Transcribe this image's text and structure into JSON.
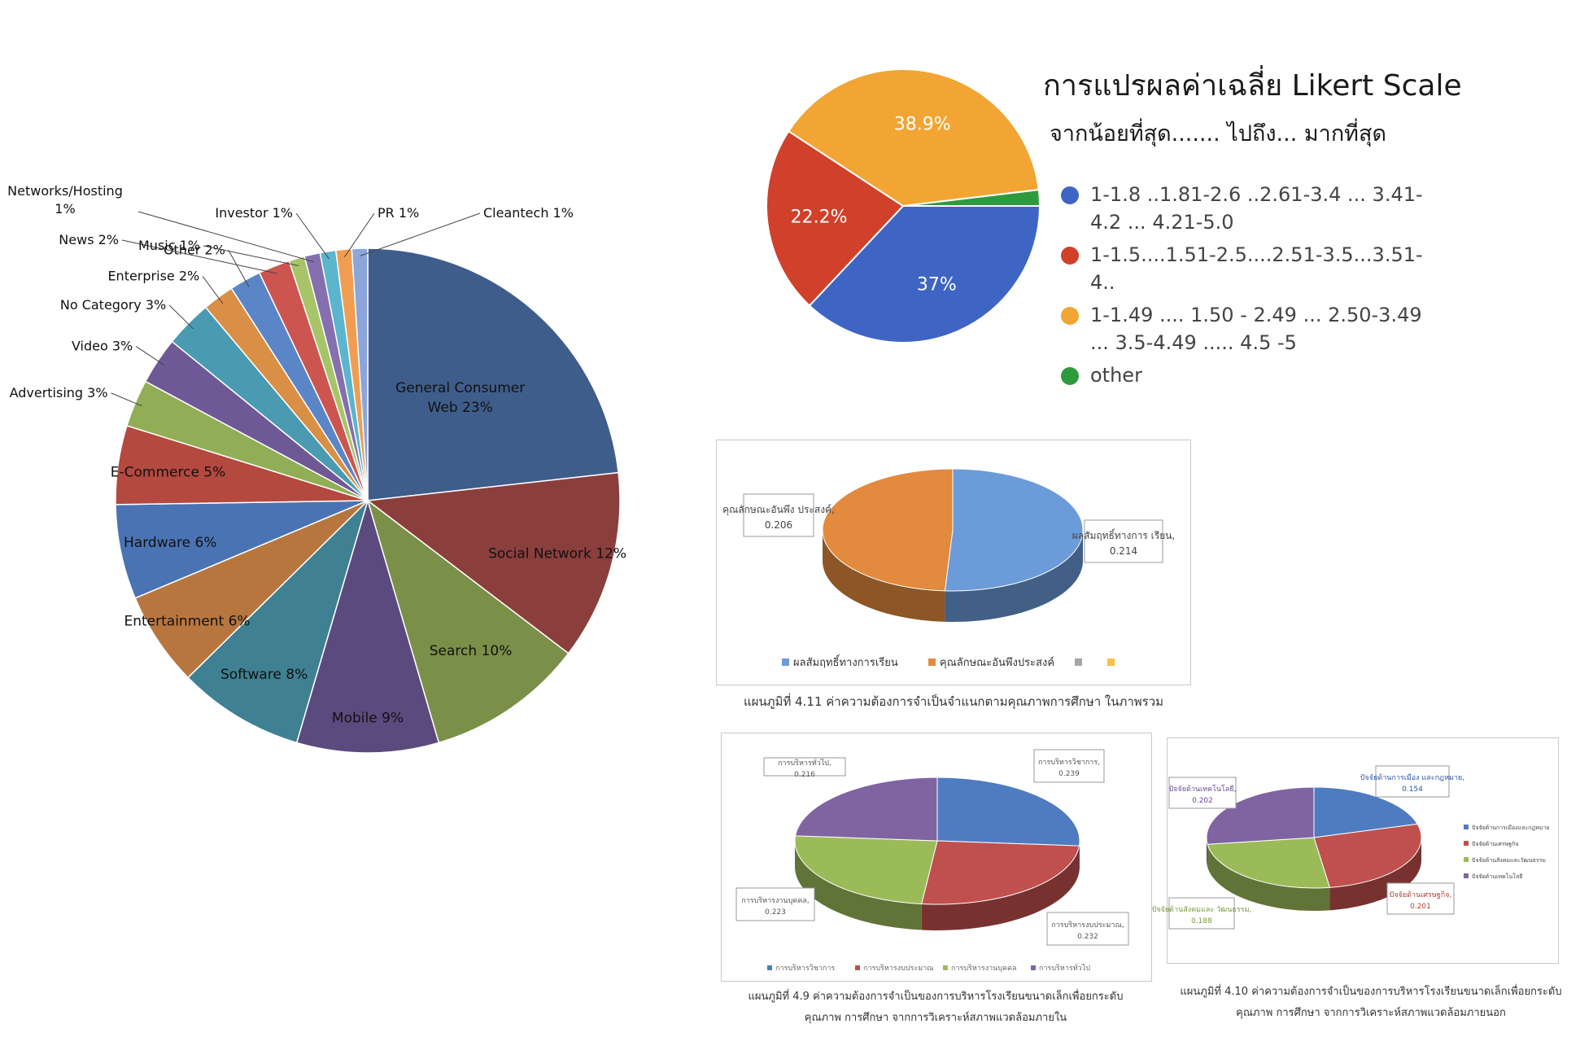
{
  "chart_data": [
    {
      "type": "pie",
      "categories": [
        "General Consumer Web",
        "Social Network",
        "Search",
        "Mobile",
        "Software",
        "Entertainment",
        "Hardware",
        "E-Commerce",
        "Advertising",
        "Video",
        "No Category",
        "Enterprise",
        "Other",
        "News",
        "Music",
        "Networks/Hosting",
        "Investor",
        "PR",
        "Cleantech"
      ],
      "values": [
        23,
        12,
        10,
        9,
        8,
        6,
        6,
        5,
        3,
        3,
        3,
        2,
        2,
        2,
        1,
        1,
        1,
        1,
        1
      ],
      "labels": [
        "General Consumer Web 23%",
        "Social Network 12%",
        "Search 10%",
        "Mobile 9%",
        "Software 8%",
        "Entertainment 6%",
        "Hardware 6%",
        "E-Commerce 5%",
        "Advertising 3%",
        "Video 3%",
        "No Category 3%",
        "Enterprise 2%",
        "Other 2%",
        "News 2%",
        "Music 1%",
        "Networks/Hosting 1%",
        "Investor 1%",
        "PR 1%",
        "Cleantech 1%"
      ],
      "colors": [
        "#3f5d8a",
        "#8b3f3c",
        "#7a9048",
        "#5b4a7e",
        "#3f8092",
        "#b8763f",
        "#4a73b4",
        "#b4493f",
        "#91ad55",
        "#6f5896",
        "#4a9bb2",
        "#d98f45",
        "#5a86c8",
        "#cc5550",
        "#a7c568",
        "#856fae",
        "#5ab5cd",
        "#f09d52",
        "#8ca6dc"
      ]
    },
    {
      "type": "pie",
      "title": "การแปรผลค่าเฉลี่ย Likert Scale",
      "subtitle": "จากน้อยที่สุด....... ไปถึง... มากที่สุด",
      "categories": [
        "1-1.8 ..1.81-2.6 ..2.61-3.4 ... 3.41-4.2 ... 4.21-5.0",
        "1-1.5....1.51-2.5....2.51-3.5...3.51-4..",
        "1-1.49 .... 1.50 - 2.49 ... 2.50-3.49 ... 3.5-4.49 ..... 4.5 -5",
        "other"
      ],
      "values": [
        37,
        22.2,
        38.9,
        1.9
      ],
      "labels": [
        "37%",
        "22.2%",
        "38.9%",
        ""
      ],
      "colors": [
        "#3e65c4",
        "#d1402a",
        "#f2a533",
        "#2e9a3e"
      ],
      "legend": "right"
    },
    {
      "type": "pie",
      "categories": [
        "ผลสัมฤทธิ์ทางการเรียน",
        "คุณลักษณะอันพึงประสงค์",
        "",
        ""
      ],
      "values": [
        0.214,
        0.206
      ],
      "labels": [
        "ผลสัมฤทธิ์ทางการ เรียน, 0.214",
        "คุณลักษณะอันพึง ประสงค์, 0.206"
      ],
      "colors": [
        "#6b9bd8",
        "#e28a3d",
        "#a5a5a5",
        "#f5c242"
      ],
      "legend": "bottom",
      "caption": "แผนภูมิที่ 4.11 ค่าความต้องการจำเป็นจำแนกตามคุณภาพการศึกษา ในภาพรวม"
    },
    {
      "type": "pie",
      "categories": [
        "การบริหารวิชาการ",
        "การบริหารงบประมาณ",
        "การบริหารงานบุคคล",
        "การบริหารทั่วไป"
      ],
      "values": [
        0.239,
        0.232,
        0.223,
        0.216
      ],
      "labels": [
        "การบริหารวิชาการ, 0.239",
        "การบริหารงบประมาณ, 0.232",
        "การบริหารงานบุคคล, 0.223",
        "การบริหารทั่วไป, 0.216"
      ],
      "colors": [
        "#4f7cc0",
        "#c0504d",
        "#9bbb59",
        "#8064a2"
      ],
      "legend": "bottom",
      "caption": "แผนภูมิที่ 4.9 ค่าความต้องการจำเป็นของการบริหารโรงเรียนขนาดเล็กเพื่อยกระดับคุณภาพ การศึกษา จากการวิเคราะห์สภาพแวดล้อมภายใน"
    },
    {
      "type": "pie",
      "categories": [
        "ปัจจัยด้านการเมืองและกฎหมาย",
        "ปัจจัยด้านเศรษฐกิจ",
        "ปัจจัยด้านสังคมและวัฒนธรรม",
        "ปัจจัยด้านเทคโนโลยี"
      ],
      "values": [
        0.154,
        0.201,
        0.188,
        0.202
      ],
      "labels": [
        "ปัจจัยด้านการเมือง และกฎหมาย, 0.154",
        "ปัจจัยด้านเศรษฐกิจ, 0.201",
        "ปัจจัยด้านสังคมและ วัฒนธรรม, 0.188",
        "ปัจจัยด้านเทคโนโลยี, 0.202"
      ],
      "colors": [
        "#4f7cc0",
        "#c0504d",
        "#9bbb59",
        "#8064a2"
      ],
      "legend": "right",
      "caption": "แผนภูมิที่ 4.10 ค่าความต้องการจำเป็นของการบริหารโรงเรียนขนาดเล็กเพื่อยกระดับคุณภาพ การศึกษา จากการวิเคราะห์สภาพแวดล้อมภายนอก"
    }
  ]
}
